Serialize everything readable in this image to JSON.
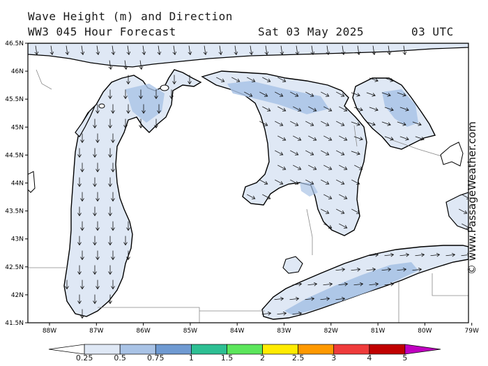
{
  "header": {
    "title": "Wave Height (m) and Direction",
    "model": "WW3 045 Hour Forecast",
    "date": "Sat 03 May 2025",
    "time": "03 UTC"
  },
  "credit": "© www.PassageWeather.com",
  "axes": {
    "lat_labels": [
      "46.5N",
      "46N",
      "45.5N",
      "45N",
      "44.5N",
      "44N",
      "43.5N",
      "43N",
      "42.5N",
      "42N",
      "41.5N"
    ],
    "lon_labels": [
      "88W",
      "87W",
      "86W",
      "85W",
      "84W",
      "83W",
      "82W",
      "81W",
      "80W",
      "79W"
    ]
  },
  "legend": {
    "labels": [
      "0.25",
      "0.5",
      "0.75",
      "1",
      "1.5",
      "2",
      "2.5",
      "3",
      "4",
      "5"
    ],
    "colors": [
      "#ffffff",
      "#dfe8f5",
      "#a9c3e6",
      "#6f9ad2",
      "#2dbf93",
      "#5ce65c",
      "#ffeb00",
      "#ff9900",
      "#ef3b3b",
      "#c00000",
      "#c000c0"
    ]
  },
  "map": {
    "land_color": "#ffffff",
    "wave_low_color": "#dfe8f5",
    "wave_mid_color": "#a9c3e6",
    "coast_color": "#000000",
    "border_color": "#888888",
    "arrow_color": "#111111"
  }
}
